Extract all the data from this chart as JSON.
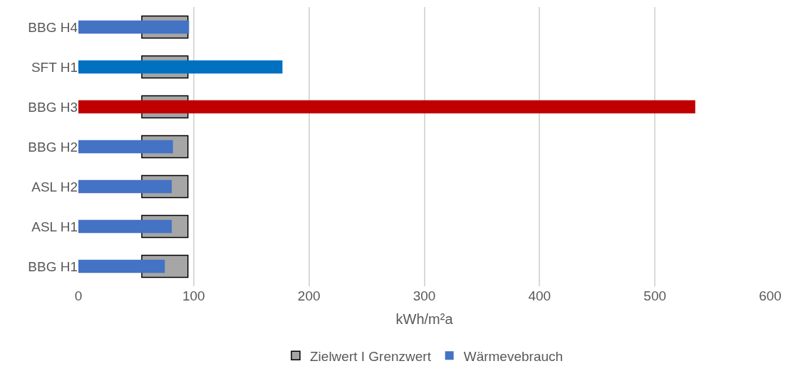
{
  "chart_data": {
    "type": "bar",
    "orientation": "horizontal",
    "xlabel": "kWh/m²a",
    "categories": [
      "BBG H4",
      "SFT H1",
      "BBG H3",
      "BBG H2",
      "ASL H2",
      "ASL H1",
      "BBG H1"
    ],
    "series": [
      {
        "name": "Zielwert I Grenzwert",
        "color": "#a6a6a6",
        "base": [
          55,
          55,
          55,
          55,
          55,
          55,
          55
        ],
        "values": [
          40,
          40,
          40,
          40,
          40,
          40,
          40
        ]
      },
      {
        "name": "Wärmevebrauch",
        "color": "#4472c4",
        "colors": [
          "#4472c4",
          "#0070c0",
          "#c00000",
          "#4472c4",
          "#4472c4",
          "#4472c4",
          "#4472c4"
        ],
        "values": [
          96,
          177,
          535,
          82,
          81,
          81,
          75
        ]
      }
    ],
    "xlim": [
      0,
      600
    ],
    "xticks": [
      0,
      100,
      200,
      300,
      400,
      500,
      600
    ],
    "grid": "x",
    "legend": "bottom"
  }
}
